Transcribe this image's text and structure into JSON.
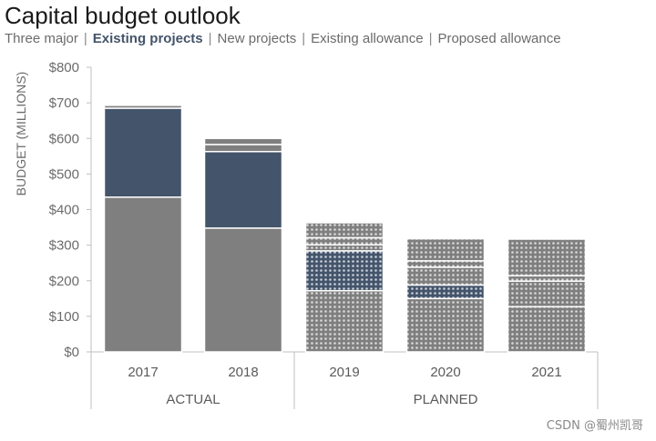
{
  "chart_data": {
    "type": "bar",
    "stacked": true,
    "title": "Capital budget outlook",
    "legend": [
      "Three major",
      "Existing projects",
      "New projects",
      "Existing allowance",
      "Proposed allowance"
    ],
    "highlighted_legend": "Existing projects",
    "ylabel": "BUDGET (MILLIONS)",
    "ylim": [
      0,
      800
    ],
    "yticks": [
      "$0",
      "$100",
      "$200",
      "$300",
      "$400",
      "$500",
      "$600",
      "$700",
      "$800"
    ],
    "categories": [
      "2017",
      "2018",
      "2019",
      "2020",
      "2021"
    ],
    "groups": [
      {
        "label": "ACTUAL",
        "categories": [
          "2017",
          "2018"
        ]
      },
      {
        "label": "PLANNED",
        "categories": [
          "2019",
          "2020",
          "2021"
        ]
      }
    ],
    "series": [
      {
        "name": "Three major",
        "values": [
          435,
          348,
          172,
          150,
          127
        ],
        "color": "#7f7f7f"
      },
      {
        "name": "Existing projects",
        "values": [
          250,
          215,
          112,
          38,
          0
        ],
        "color": "#44546a"
      },
      {
        "name": "New projects",
        "values": [
          0,
          0,
          17,
          50,
          72
        ],
        "color": "#7f7f7f"
      },
      {
        "name": "Existing allowance",
        "values": [
          0,
          20,
          20,
          18,
          15
        ],
        "color": "#7f7f7f"
      },
      {
        "name": "Proposed allowance",
        "values": [
          8,
          17,
          42,
          62,
          103
        ],
        "color": "#7f7f7f"
      }
    ],
    "hatched_categories": [
      "2019",
      "2020",
      "2021"
    ],
    "grid": false
  },
  "watermark": "CSDN @蜀州凯哥"
}
